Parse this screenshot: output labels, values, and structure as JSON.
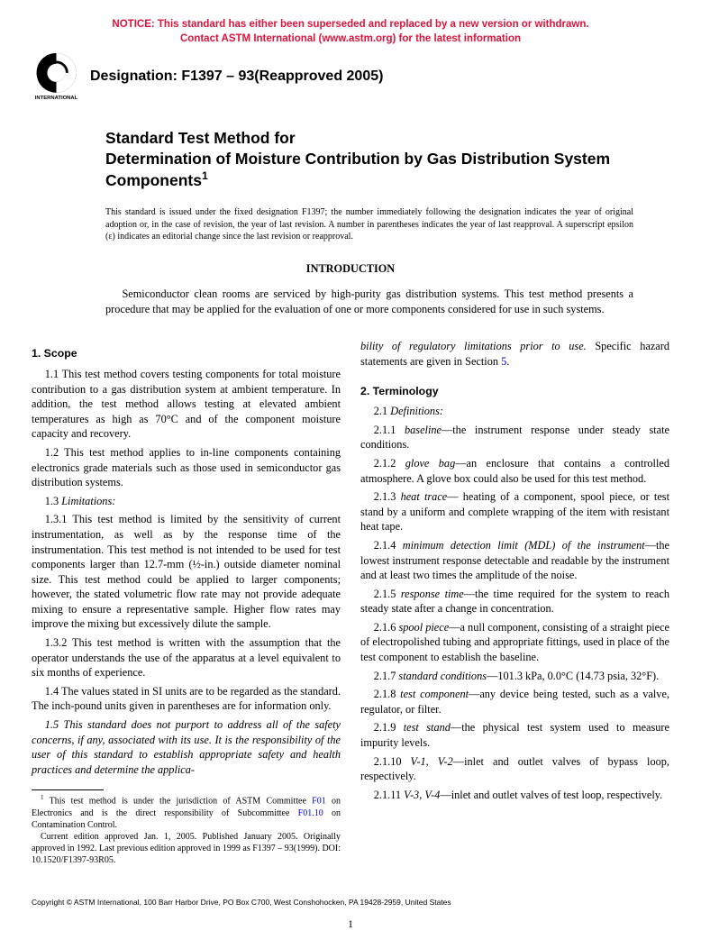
{
  "notice": {
    "line1": "NOTICE: This standard has either been superseded and replaced by a new version or withdrawn.",
    "line2": "Contact ASTM International (www.astm.org) for the latest information"
  },
  "logo": {
    "alt": "ASTM International",
    "fill": "#000000"
  },
  "designation": "Designation: F1397 – 93(Reapproved 2005)",
  "title": {
    "line1": "Standard Test Method for",
    "line2": "Determination of Moisture Contribution by Gas Distribution System Components",
    "sup": "1"
  },
  "issue_note": "This standard is issued under the fixed designation F1397; the number immediately following the designation indicates the year of original adoption or, in the case of revision, the year of last revision. A number in parentheses indicates the year of last reapproval. A superscript epsilon (ε) indicates an editorial change since the last revision or reapproval.",
  "intro": {
    "heading": "INTRODUCTION",
    "text": "Semiconductor clean rooms are serviced by high-purity gas distribution systems. This test method presents a procedure that may be applied for the evaluation of one or more components considered for use in such systems."
  },
  "left_col": {
    "scope_heading": "1. Scope",
    "p11": "1.1 This test method covers testing components for total moisture contribution to a gas distribution system at ambient temperature. In addition, the test method allows testing at elevated ambient temperatures as high as 70°C and of the component moisture capacity and recovery.",
    "p12": "1.2 This test method applies to in-line components containing electronics grade materials such as those used in semiconductor gas distribution systems.",
    "p13_label": "1.3 ",
    "p13_title": "Limitations:",
    "p131": "1.3.1 This test method is limited by the sensitivity of current instrumentation, as well as by the response time of the instrumentation. This test method is not intended to be used for test components larger than 12.7-mm (½-in.) outside diameter nominal size. This test method could be applied to larger components; however, the stated volumetric flow rate may not provide adequate mixing to ensure a representative sample. Higher flow rates may improve the mixing but excessively dilute the sample.",
    "p132": "1.3.2 This test method is written with the assumption that the operator understands the use of the apparatus at a level equivalent to six months of experience.",
    "p14": "1.4 The values stated in SI units are to be regarded as the standard. The inch-pound units given in parentheses are for information only.",
    "p15": "1.5 This standard does not purport to address all of the safety concerns, if any, associated with its use. It is the responsibility of the user of this standard to establish appropriate safety and health practices and determine the applica-",
    "footnote": {
      "sup": "1",
      "text_a": " This test method is under the jurisdiction of ASTM Committee ",
      "link1": "F01",
      "text_b": " on Electronics and is the direct responsibility of Subcommittee ",
      "link2": "F01.10",
      "text_c": " on Contamination Control.",
      "para2": "Current edition approved Jan. 1, 2005. Published January 2005. Originally approved in 1992. Last previous edition approved in 1999 as F1397 – 93(1999). DOI: 10.1520/F1397-93R05."
    }
  },
  "right_col": {
    "cont_italic": "bility of regulatory limitations prior to use.",
    "cont_rest": " Specific hazard statements are given in Section ",
    "cont_link": "5",
    "cont_period": ".",
    "term_heading": "2. Terminology",
    "p21_label": "2.1 ",
    "p21_title": "Definitions:",
    "defs": [
      {
        "num": "2.1.1",
        "term": "baseline",
        "def": "—the instrument response under steady state conditions."
      },
      {
        "num": "2.1.2",
        "term": "glove bag",
        "def": "—an enclosure that contains a controlled atmosphere. A glove box could also be used for this test method."
      },
      {
        "num": "2.1.3",
        "term": "heat trace",
        "def": "— heating of a component, spool piece, or test stand by a uniform and complete wrapping of the item with resistant heat tape."
      },
      {
        "num": "2.1.4",
        "term": "minimum detection limit (MDL) of the instrument",
        "def": "—the lowest instrument response detectable and readable by the instrument and at least two times the amplitude of the noise."
      },
      {
        "num": "2.1.5",
        "term": "response time",
        "def": "—the time required for the system to reach steady state after a change in concentration."
      },
      {
        "num": "2.1.6",
        "term": "spool piece",
        "def": "—a null component, consisting of a straight piece of electropolished tubing and appropriate fittings, used in place of the test component to establish the baseline."
      },
      {
        "num": "2.1.7",
        "term": "standard conditions",
        "def": "—101.3 kPa, 0.0°C (14.73 psia, 32°F)."
      },
      {
        "num": "2.1.8",
        "term": "test component",
        "def": "—any device being tested, such as a valve, regulator, or filter."
      },
      {
        "num": "2.1.9",
        "term": "test stand",
        "def": "—the physical test system used to measure impurity levels."
      },
      {
        "num": "2.1.10",
        "term": "V-1, V-2",
        "def": "—inlet and outlet valves of bypass loop, respectively."
      },
      {
        "num": "2.1.11",
        "term": "V-3, V-4",
        "def": "—inlet and outlet valves of test loop, respectively."
      }
    ]
  },
  "copyright": "Copyright © ASTM International, 100 Barr Harbor Drive, PO Box C700, West Conshohocken, PA 19428-2959, United States",
  "pagenum": "1"
}
